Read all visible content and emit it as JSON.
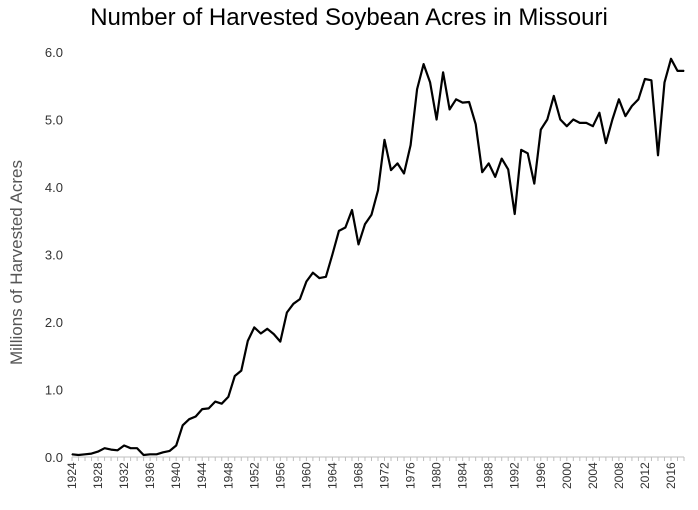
{
  "chart_data": {
    "type": "line",
    "title": "Number of Harvested Soybean Acres in Missouri",
    "xlabel": "",
    "ylabel": "Millions of Harvested Acres",
    "ylim": [
      0,
      6
    ],
    "xlim": [
      1924,
      2018
    ],
    "y_ticks": [
      "0.0",
      "1.0",
      "2.0",
      "3.0",
      "4.0",
      "5.0",
      "6.0"
    ],
    "x_ticks": [
      "1924",
      "1928",
      "1932",
      "1936",
      "1940",
      "1944",
      "1948",
      "1952",
      "1956",
      "1960",
      "1964",
      "1968",
      "1972",
      "1976",
      "1980",
      "1984",
      "1988",
      "1992",
      "1996",
      "2000",
      "2004",
      "2008",
      "2012",
      "2016"
    ],
    "grid": false,
    "line_color": "#000000",
    "series": [
      {
        "x": [
          1924,
          1925,
          1926,
          1927,
          1928,
          1929,
          1930,
          1931,
          1932,
          1933,
          1934,
          1935,
          1936,
          1937,
          1938,
          1939,
          1940,
          1941,
          1942,
          1943,
          1944,
          1945,
          1946,
          1947,
          1948,
          1949,
          1950,
          1951,
          1952,
          1953,
          1954,
          1955,
          1956,
          1957,
          1958,
          1959,
          1960,
          1961,
          1962,
          1963,
          1964,
          1965,
          1966,
          1967,
          1968,
          1969,
          1970,
          1971,
          1972,
          1973,
          1974,
          1975,
          1976,
          1977,
          1978,
          1979,
          1980,
          1981,
          1982,
          1983,
          1984,
          1985,
          1986,
          1987,
          1988,
          1989,
          1990,
          1991,
          1992,
          1993,
          1994,
          1995,
          1996,
          1997,
          1998,
          1999,
          2000,
          2001,
          2002,
          2003,
          2004,
          2005,
          2006,
          2007,
          2008,
          2009,
          2010,
          2011,
          2012,
          2013,
          2014,
          2015,
          2016,
          2017,
          2018
        ],
        "values": [
          0.04,
          0.03,
          0.04,
          0.05,
          0.08,
          0.13,
          0.11,
          0.1,
          0.17,
          0.13,
          0.13,
          0.03,
          0.04,
          0.04,
          0.07,
          0.09,
          0.17,
          0.47,
          0.56,
          0.6,
          0.71,
          0.72,
          0.82,
          0.79,
          0.89,
          1.2,
          1.28,
          1.72,
          1.92,
          1.83,
          1.9,
          1.82,
          1.71,
          2.14,
          2.27,
          2.34,
          2.6,
          2.73,
          2.65,
          2.67,
          3.0,
          3.35,
          3.4,
          3.66,
          3.15,
          3.45,
          3.59,
          3.95,
          4.7,
          4.25,
          4.35,
          4.2,
          4.62,
          5.45,
          5.82,
          5.55,
          5.0,
          5.7,
          5.15,
          5.3,
          5.25,
          5.26,
          4.93,
          4.22,
          4.35,
          4.15,
          4.42,
          4.26,
          3.6,
          4.55,
          4.5,
          4.05,
          4.85,
          5.0,
          5.35,
          5.0,
          4.9,
          5.0,
          4.95,
          4.95,
          4.9,
          5.1,
          4.65,
          5.0,
          5.3,
          5.05,
          5.2,
          5.3,
          5.6,
          5.58,
          4.47,
          5.55,
          5.9,
          5.72,
          5.72
        ]
      }
    ]
  }
}
